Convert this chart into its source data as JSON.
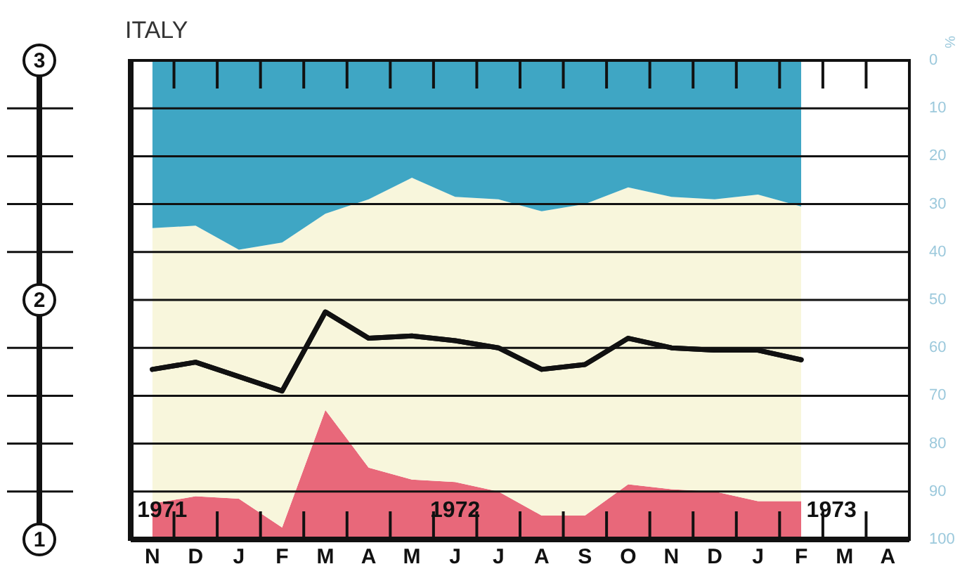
{
  "chart_data": {
    "type": "area",
    "title": "ITALY",
    "ylabel": "%",
    "stacked": true,
    "categories": [
      "N",
      "D",
      "J",
      "F",
      "M",
      "A",
      "M",
      "J",
      "J",
      "A",
      "S",
      "O",
      "N",
      "D",
      "J",
      "F",
      "M",
      "A"
    ],
    "series": [
      {
        "type": "area",
        "color": "#3fa6c4",
        "values": [
          35,
          34.5,
          39.5,
          38,
          32,
          29,
          24.5,
          28.5,
          29,
          31.5,
          30,
          26.5,
          28.5,
          29,
          28,
          30.5,
          null,
          null
        ]
      },
      {
        "type": "area",
        "color": "#f8f6dc",
        "values": [
          57.5,
          56.5,
          52,
          59.5,
          41,
          56,
          63,
          59.5,
          61,
          63.5,
          65,
          62,
          61,
          61,
          64,
          61.5,
          null,
          null
        ]
      },
      {
        "type": "area",
        "color": "#e8687a",
        "values": [
          7.5,
          9,
          8.5,
          2.5,
          27,
          15,
          12.5,
          12,
          10,
          5,
          5,
          11.5,
          10.5,
          10,
          8,
          8,
          null,
          null
        ]
      },
      {
        "type": "line",
        "color": "#111111",
        "values": [
          64.5,
          63,
          66,
          69,
          52.5,
          58,
          57.5,
          58.5,
          60,
          64.5,
          63.5,
          58,
          60,
          60.5,
          60.5,
          62.5,
          null,
          null
        ]
      }
    ],
    "ylim": [
      100,
      0
    ],
    "yticks": [
      0,
      10,
      20,
      30,
      40,
      50,
      60,
      70,
      80,
      90,
      100
    ],
    "y2lim": [
      1,
      3
    ],
    "y2ticks": [
      1,
      {
        "value": 1.2,
        "label": null
      },
      {
        "value": 1.4,
        "label": null
      },
      {
        "value": 1.6,
        "label": null
      },
      {
        "value": 1.8,
        "label": null
      },
      2,
      {
        "value": 2.2,
        "label": null
      },
      {
        "value": 2.4,
        "label": null
      },
      {
        "value": 2.6,
        "label": null
      },
      {
        "value": 2.8,
        "label": null
      },
      3
    ],
    "grid": "y",
    "legend": false,
    "annotations": [
      "1971",
      "1972",
      "1973"
    ]
  }
}
